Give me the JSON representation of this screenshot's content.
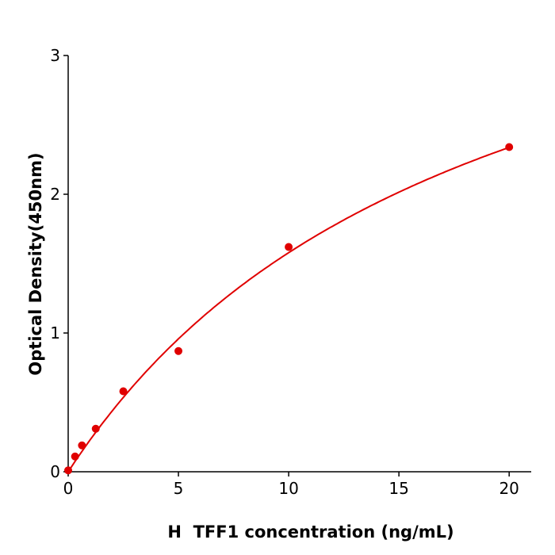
{
  "chart_data": {
    "type": "scatter",
    "title": "",
    "xlabel": "H  TFF1 concentration (ng/mL)",
    "ylabel": "Optical Density(450nm)",
    "xlim": [
      0,
      21
    ],
    "ylim": [
      0,
      3
    ],
    "xticks": [
      "0",
      "5",
      "10",
      "15",
      "20"
    ],
    "yticks": [
      "0",
      "1",
      "2",
      "3"
    ],
    "grid": false,
    "color": "#e00000",
    "points": [
      {
        "x": 0,
        "y": 0.01
      },
      {
        "x": 0.3125,
        "y": 0.11
      },
      {
        "x": 0.625,
        "y": 0.19
      },
      {
        "x": 1.25,
        "y": 0.31
      },
      {
        "x": 2.5,
        "y": 0.58
      },
      {
        "x": 5,
        "y": 0.87
      },
      {
        "x": 10,
        "y": 1.62
      },
      {
        "x": 20,
        "y": 2.34
      }
    ],
    "fit_curve": true
  }
}
